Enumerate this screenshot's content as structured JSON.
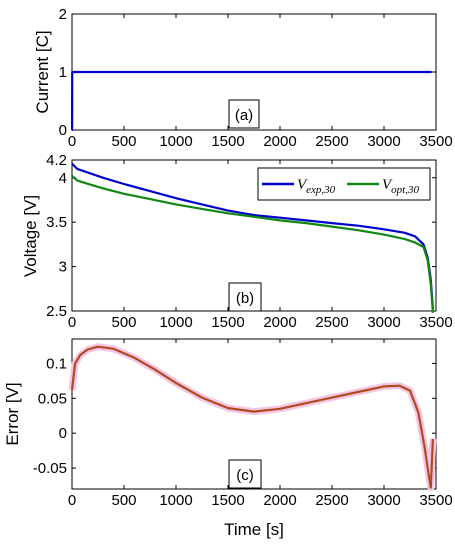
{
  "chart_data": [
    {
      "id": "a",
      "type": "line",
      "tag": "(a)",
      "ylabel": "Current [C]",
      "xlabel": "",
      "xlim": [
        0,
        3500
      ],
      "ylim": [
        0,
        2
      ],
      "xticks": [
        "0",
        "500",
        "1000",
        "1500",
        "2000",
        "2500",
        "3000",
        "3500"
      ],
      "yticks": [
        "0",
        "1",
        "2"
      ],
      "series": [
        {
          "color": "#0000cc",
          "x": [
            0,
            1,
            2,
            3460
          ],
          "y": [
            0,
            0,
            1,
            1
          ]
        }
      ]
    },
    {
      "id": "b",
      "type": "line",
      "tag": "(b)",
      "ylabel": "Voltage [V]",
      "xlabel": "",
      "xlim": [
        0,
        3500
      ],
      "ylim": [
        2.5,
        4.2
      ],
      "xticks": [
        "0",
        "500",
        "1000",
        "1500",
        "2000",
        "2500",
        "3000",
        "3500"
      ],
      "yticks": [
        "2.5",
        "3",
        "3.5",
        "4",
        "4.2"
      ],
      "legend_position": "top-right",
      "series": [
        {
          "name": "V_exp,30",
          "name_main": "V",
          "name_sub": "exp,30",
          "color": "#0000cc",
          "x": [
            0,
            50,
            100,
            300,
            500,
            750,
            1000,
            1250,
            1500,
            1750,
            2000,
            2250,
            2500,
            2750,
            3000,
            3200,
            3300,
            3380,
            3420,
            3450,
            3470
          ],
          "y": [
            4.16,
            4.1,
            4.08,
            4.0,
            3.93,
            3.85,
            3.77,
            3.7,
            3.63,
            3.58,
            3.55,
            3.52,
            3.49,
            3.46,
            3.42,
            3.38,
            3.34,
            3.25,
            3.1,
            2.85,
            2.52
          ]
        },
        {
          "name": "V_opt,30",
          "name_main": "V",
          "name_sub": "opt,30",
          "color": "#118811",
          "x": [
            0,
            50,
            100,
            300,
            500,
            750,
            1000,
            1250,
            1500,
            1750,
            2000,
            2250,
            2500,
            2750,
            3000,
            3200,
            3300,
            3380,
            3420,
            3450,
            3470
          ],
          "y": [
            4.02,
            3.97,
            3.95,
            3.88,
            3.82,
            3.76,
            3.7,
            3.65,
            3.6,
            3.56,
            3.52,
            3.49,
            3.45,
            3.41,
            3.36,
            3.31,
            3.27,
            3.22,
            3.07,
            2.8,
            2.48
          ]
        }
      ]
    },
    {
      "id": "c",
      "type": "line",
      "tag": "(c)",
      "ylabel": "Error [V]",
      "xlabel": "Time [s]",
      "xlim": [
        0,
        3500
      ],
      "ylim": [
        -0.08,
        0.135
      ],
      "xticks": [
        "0",
        "500",
        "1000",
        "1500",
        "2000",
        "2500",
        "3000",
        "3500"
      ],
      "yticks": [
        "-0.05",
        "0",
        "0.05",
        "0.1"
      ],
      "series": [
        {
          "color": "#b34a1e",
          "x": [
            0,
            30,
            80,
            150,
            250,
            400,
            600,
            800,
            1000,
            1250,
            1500,
            1750,
            2000,
            2250,
            2500,
            2750,
            3000,
            3150,
            3250,
            3330,
            3390,
            3430,
            3450,
            3470
          ],
          "y": [
            0.062,
            0.1,
            0.112,
            0.12,
            0.124,
            0.121,
            0.108,
            0.091,
            0.072,
            0.051,
            0.036,
            0.031,
            0.035,
            0.043,
            0.051,
            0.059,
            0.067,
            0.068,
            0.061,
            0.03,
            -0.02,
            -0.06,
            -0.078,
            -0.008
          ]
        }
      ]
    }
  ]
}
